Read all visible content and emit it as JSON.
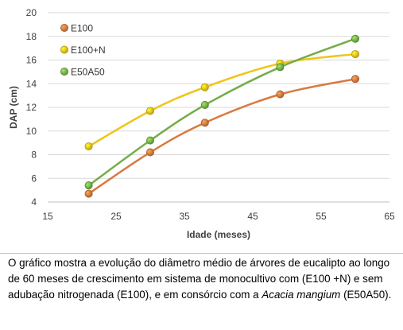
{
  "chart_data": {
    "type": "line",
    "title": "",
    "xlabel": "Idade (meses)",
    "ylabel": "DAP (cm)",
    "xlim": [
      15,
      65
    ],
    "ylim": [
      4,
      20
    ],
    "x_ticks": [
      "15",
      "25",
      "35",
      "45",
      "55",
      "65"
    ],
    "y_ticks": [
      "4",
      "6",
      "8",
      "10",
      "12",
      "14",
      "16",
      "18",
      "20"
    ],
    "grid": "horizontal",
    "legend_position": "top-left",
    "series": [
      {
        "name": "E100",
        "color": "#d9793f",
        "x": [
          21,
          30,
          38,
          49,
          60
        ],
        "y": [
          4.7,
          8.2,
          10.7,
          13.1,
          14.4
        ]
      },
      {
        "name": "E100+N",
        "color": "#f0c419",
        "x": [
          21,
          30,
          38,
          49,
          60
        ],
        "y": [
          8.7,
          11.7,
          13.7,
          15.7,
          16.5
        ]
      },
      {
        "name": "E50A50",
        "color": "#74ad48",
        "x": [
          21,
          30,
          38,
          49,
          60
        ],
        "y": [
          5.4,
          9.2,
          12.2,
          15.4,
          17.8
        ]
      }
    ]
  },
  "caption": {
    "before_italic": "O gráfico mostra a evolução do diâmetro médio de árvores de eucalipto ao longo de 60 meses de crescimento em sistema de monocultivo com (E100 +N) e sem adubação nitrogenada (E100), e em consórcio com a ",
    "italic": "Acacia mangium",
    "after_italic": " (E50A50)."
  }
}
